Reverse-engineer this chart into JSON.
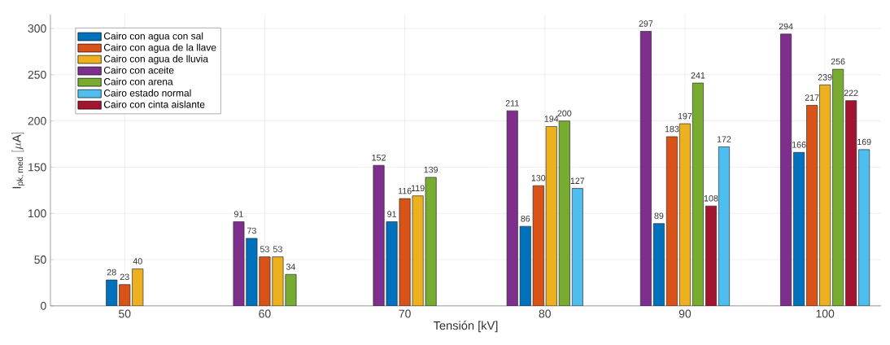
{
  "chart_data": {
    "type": "bar",
    "xlabel": "Tensión [kV]",
    "ylabel": "\\mathrm{I}_{\\mathrm{pk,\\,med}}\\ [\\mu\\mathrm{A}]",
    "categories": [
      "50",
      "60",
      "70",
      "80",
      "90",
      "100"
    ],
    "series": [
      {
        "name": "Cairo con agua con sal",
        "color": "#0072bd",
        "values": [
          28,
          73,
          91,
          86,
          89,
          166
        ]
      },
      {
        "name": "Cairo con agua de la llave",
        "color": "#d95319",
        "values": [
          23,
          53,
          116,
          130,
          183,
          217
        ]
      },
      {
        "name": "Cairo con agua de lluvia",
        "color": "#edb120",
        "values": [
          40,
          53,
          119,
          194,
          197,
          239
        ]
      },
      {
        "name": "Cairo con aceite",
        "color": "#7e2f8e",
        "values": [
          null,
          91,
          152,
          211,
          297,
          294
        ]
      },
      {
        "name": "Cairo con arena",
        "color": "#77ac30",
        "values": [
          null,
          34,
          139,
          200,
          241,
          256
        ]
      },
      {
        "name": "Cairo estado normal",
        "color": "#4dbeee",
        "values": [
          null,
          null,
          null,
          127,
          172,
          169
        ]
      },
      {
        "name": "Cairo con cinta aislante",
        "color": "#a2142f",
        "values": [
          null,
          null,
          null,
          null,
          108,
          222
        ]
      }
    ],
    "ylim": [
      0,
      315
    ],
    "yticks": [
      0,
      50,
      100,
      150,
      200,
      250,
      300
    ],
    "grid": true,
    "legend": "top left",
    "data_labels": true
  }
}
